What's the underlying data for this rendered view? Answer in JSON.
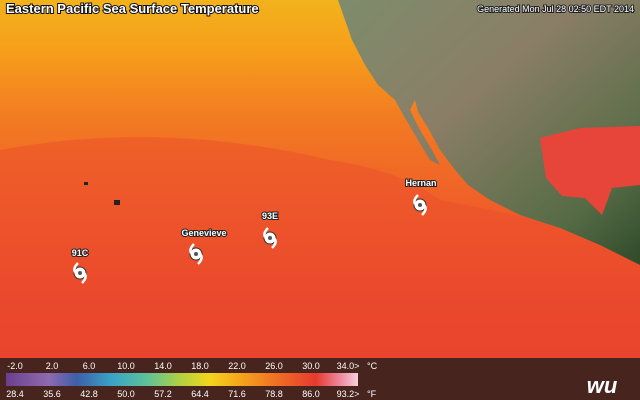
{
  "header": {
    "title": "Eastern Pacific Sea Surface Temperature",
    "generated": "Generated Mon Jul 28 02:50 EDT 2014"
  },
  "storms": [
    {
      "label": "Hernan"
    },
    {
      "label": "Genevieve"
    },
    {
      "label": "93E"
    },
    {
      "label": "91C"
    }
  ],
  "legend": {
    "celsius": [
      "-2.0",
      "2.0",
      "6.0",
      "10.0",
      "14.0",
      "18.0",
      "22.0",
      "26.0",
      "30.0",
      "34.0>"
    ],
    "celsius_unit": "°C",
    "fahrenheit": [
      "28.4",
      "35.6",
      "42.8",
      "50.0",
      "57.2",
      "64.4",
      "71.6",
      "78.8",
      "86.0",
      "93.2>"
    ],
    "fahrenheit_unit": "°F"
  },
  "logo": "wu"
}
